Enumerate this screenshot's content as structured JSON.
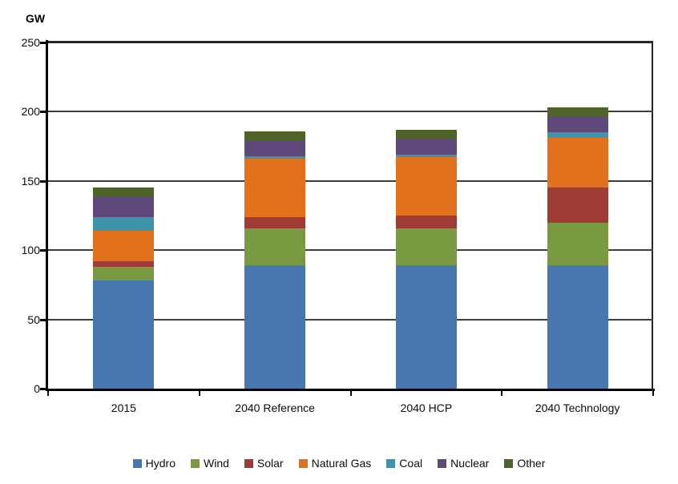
{
  "chart_data": {
    "type": "bar",
    "stacked": true,
    "axis_title": "GW",
    "categories": [
      "2015",
      "2040 Reference",
      "2040 HCP",
      "2040 Technology"
    ],
    "series": [
      {
        "name": "Hydro",
        "color": "#4876AF",
        "values": [
          78,
          89,
          89,
          89
        ]
      },
      {
        "name": "Wind",
        "color": "#7A9A41",
        "values": [
          10,
          27,
          27,
          31
        ]
      },
      {
        "name": "Solar",
        "color": "#9E3B35",
        "values": [
          4,
          8,
          9,
          25
        ]
      },
      {
        "name": "Natural Gas",
        "color": "#E2711D",
        "values": [
          22,
          42,
          42,
          36
        ]
      },
      {
        "name": "Coal",
        "color": "#3D95AC",
        "values": [
          10,
          2,
          2,
          4
        ]
      },
      {
        "name": "Nuclear",
        "color": "#5F497A",
        "values": [
          15,
          11,
          11,
          11
        ]
      },
      {
        "name": "Other",
        "color": "#4F6228",
        "values": [
          6,
          7,
          7,
          7
        ]
      }
    ],
    "ylim": [
      0,
      250
    ],
    "yticks": [
      0,
      50,
      100,
      150,
      200,
      250
    ],
    "grid": true,
    "legend_position": "bottom"
  }
}
